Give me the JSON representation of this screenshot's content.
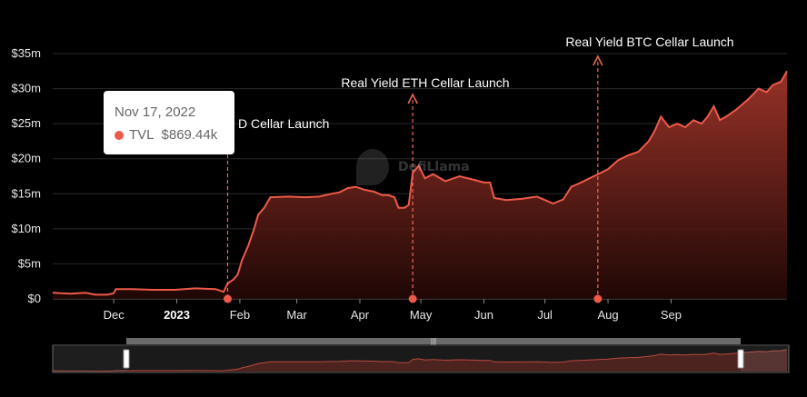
{
  "chart_data": {
    "type": "area",
    "series": [
      {
        "name": "TVL",
        "color": "#ee5a4a",
        "points": [
          [
            "2022-11-01",
            0.9
          ],
          [
            "2022-11-05",
            0.8
          ],
          [
            "2022-11-10",
            0.75
          ],
          [
            "2022-11-17",
            0.87
          ],
          [
            "2022-11-22",
            0.6
          ],
          [
            "2022-11-28",
            0.6
          ],
          [
            "2022-12-01",
            0.8
          ],
          [
            "2022-12-02",
            1.4
          ],
          [
            "2022-12-10",
            1.4
          ],
          [
            "2022-12-20",
            1.3
          ],
          [
            "2022-12-31",
            1.3
          ],
          [
            "2023-01-10",
            1.5
          ],
          [
            "2023-01-20",
            1.4
          ],
          [
            "2023-01-24",
            1.0
          ],
          [
            "2023-01-26",
            2.2
          ],
          [
            "2023-01-29",
            2.8
          ],
          [
            "2023-01-31",
            3.5
          ],
          [
            "2023-02-02",
            5.5
          ],
          [
            "2023-02-05",
            7.5
          ],
          [
            "2023-02-08",
            10.0
          ],
          [
            "2023-02-10",
            12.0
          ],
          [
            "2023-02-13",
            13.0
          ],
          [
            "2023-02-16",
            14.5
          ],
          [
            "2023-02-25",
            14.6
          ],
          [
            "2023-03-05",
            14.5
          ],
          [
            "2023-03-12",
            14.6
          ],
          [
            "2023-03-18",
            15.0
          ],
          [
            "2023-03-22",
            15.2
          ],
          [
            "2023-03-26",
            15.8
          ],
          [
            "2023-03-30",
            16.0
          ],
          [
            "2023-04-03",
            15.6
          ],
          [
            "2023-04-08",
            15.3
          ],
          [
            "2023-04-12",
            14.8
          ],
          [
            "2023-04-15",
            14.8
          ],
          [
            "2023-04-18",
            14.5
          ],
          [
            "2023-04-20",
            13.0
          ],
          [
            "2023-04-23",
            13.0
          ],
          [
            "2023-04-25",
            13.4
          ],
          [
            "2023-04-27",
            18.0
          ],
          [
            "2023-04-30",
            19.0
          ],
          [
            "2023-05-03",
            17.2
          ],
          [
            "2023-05-07",
            17.8
          ],
          [
            "2023-05-13",
            16.8
          ],
          [
            "2023-05-20",
            17.5
          ],
          [
            "2023-05-27",
            17.0
          ],
          [
            "2023-06-01",
            16.6
          ],
          [
            "2023-06-04",
            16.6
          ],
          [
            "2023-06-06",
            14.4
          ],
          [
            "2023-06-12",
            14.1
          ],
          [
            "2023-06-20",
            14.3
          ],
          [
            "2023-06-27",
            14.6
          ],
          [
            "2023-07-01",
            14.1
          ],
          [
            "2023-07-05",
            13.6
          ],
          [
            "2023-07-10",
            14.2
          ],
          [
            "2023-07-14",
            16.0
          ],
          [
            "2023-07-18",
            16.5
          ],
          [
            "2023-07-25",
            17.5
          ],
          [
            "2023-08-01",
            18.5
          ],
          [
            "2023-08-06",
            19.8
          ],
          [
            "2023-08-11",
            20.5
          ],
          [
            "2023-08-16",
            21.0
          ],
          [
            "2023-08-21",
            22.5
          ],
          [
            "2023-08-24",
            24.0
          ],
          [
            "2023-08-27",
            26.0
          ],
          [
            "2023-08-31",
            24.5
          ],
          [
            "2023-09-04",
            25.0
          ],
          [
            "2023-09-08",
            24.5
          ],
          [
            "2023-09-12",
            25.5
          ],
          [
            "2023-09-16",
            25.0
          ],
          [
            "2023-09-19",
            26.0
          ],
          [
            "2023-09-22",
            27.5
          ],
          [
            "2023-09-25",
            25.5
          ],
          [
            "2023-09-28",
            26.0
          ],
          [
            "2023-10-03",
            27.0
          ],
          [
            "2023-10-09",
            28.5
          ],
          [
            "2023-10-14",
            30.0
          ],
          [
            "2023-10-18",
            29.5
          ],
          [
            "2023-10-21",
            30.5
          ],
          [
            "2023-10-25",
            31.0
          ],
          [
            "2023-10-28",
            32.5
          ]
        ]
      }
    ],
    "x_domain": [
      "2022-11-01",
      "2023-10-28"
    ],
    "ylim": [
      0,
      35
    ],
    "y_ticks": [
      {
        "value": 0,
        "label": "$0"
      },
      {
        "value": 5,
        "label": "$5m"
      },
      {
        "value": 10,
        "label": "$10m"
      },
      {
        "value": 15,
        "label": "$15m"
      },
      {
        "value": 20,
        "label": "$20m"
      },
      {
        "value": 25,
        "label": "$25m"
      },
      {
        "value": 30,
        "label": "$30m"
      },
      {
        "value": 35,
        "label": "$35m"
      }
    ],
    "x_ticks": [
      {
        "date": "2022-12-01",
        "label": "Dec"
      },
      {
        "date": "2023-01-01",
        "label": "2023",
        "bold": true
      },
      {
        "date": "2023-02-01",
        "label": "Feb"
      },
      {
        "date": "2023-03-01",
        "label": "Mar"
      },
      {
        "date": "2023-04-01",
        "label": "Apr"
      },
      {
        "date": "2023-05-01",
        "label": "May"
      },
      {
        "date": "2023-06-01",
        "label": "Jun"
      },
      {
        "date": "2023-07-01",
        "label": "Jul"
      },
      {
        "date": "2023-08-01",
        "label": "Aug"
      },
      {
        "date": "2023-09-01",
        "label": "Sep"
      }
    ],
    "grid": true,
    "annotations": [
      {
        "date": "2023-01-26",
        "label": "D Cellar Launch"
      },
      {
        "date": "2023-04-27",
        "label": "Real Yield ETH Cellar Launch"
      },
      {
        "date": "2023-07-27",
        "label": "Real Yield BTC Cellar Launch"
      }
    ],
    "tooltip": {
      "date": "Nov 17, 2022",
      "series": "TVL",
      "value": "$869.44k"
    }
  },
  "watermark": {
    "text": "DefiLlama"
  },
  "colors": {
    "line": "#ee5a4a",
    "fill_top": "#a33a2f",
    "grid": "#2a2a2a",
    "slider": "#555555"
  }
}
